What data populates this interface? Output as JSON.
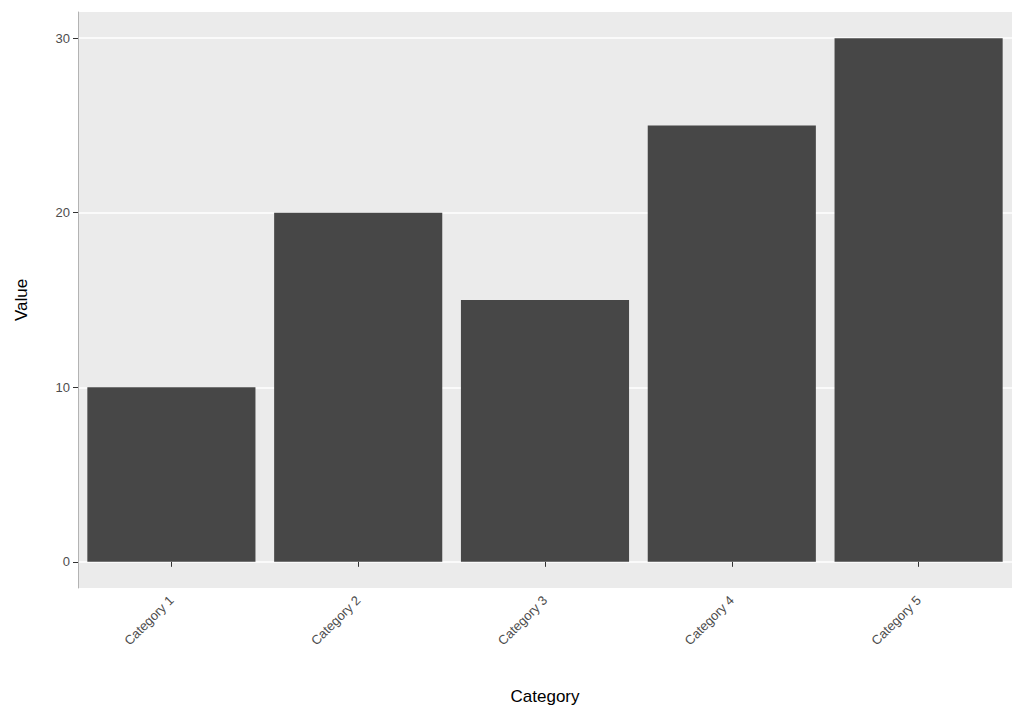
{
  "chart_data": {
    "type": "bar",
    "x_label": "Category",
    "y_label": "Value",
    "categories": [
      "Category 1",
      "Category 2",
      "Category 3",
      "Category 4",
      "Category 5"
    ],
    "values": [
      10,
      20,
      15,
      25,
      30
    ],
    "color": "#474747",
    "ylim": [
      -1.5,
      31.5
    ],
    "yticks": [
      0,
      10,
      20,
      30
    ],
    "grid": true
  }
}
